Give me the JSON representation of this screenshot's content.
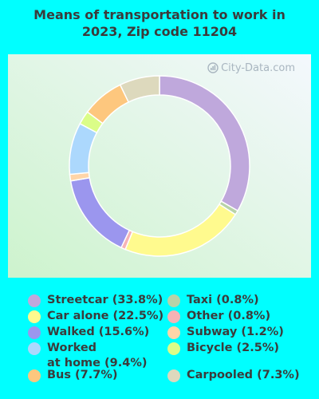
{
  "title_line1": "Means of transportation to work in",
  "title_line2": "2023, Zip code 11204",
  "watermark": "City-Data.com",
  "colors": {
    "background": "#00ffff",
    "panel_top": "#f4f8fd",
    "panel_bottom": "#cdf3cd"
  },
  "chart_data": {
    "type": "pie",
    "variant": "donut",
    "title": "Means of transportation to work in 2023, Zip code 11204",
    "unit": "%",
    "slices": [
      {
        "label": "Streetcar",
        "value": 33.8,
        "color": "#bfa8dc",
        "legend": "Streetcar (33.8%)"
      },
      {
        "label": "Taxi",
        "value": 0.8,
        "color": "#b8d3a8",
        "legend": "Taxi (0.8%)"
      },
      {
        "label": "Car alone",
        "value": 22.5,
        "color": "#fffa8e",
        "legend": "Car alone (22.5%)"
      },
      {
        "label": "Other",
        "value": 0.8,
        "color": "#f6b3b5",
        "legend": "Other (0.8%)"
      },
      {
        "label": "Walked",
        "value": 15.6,
        "color": "#9b96ee",
        "legend": "Walked (15.6%)"
      },
      {
        "label": "Subway",
        "value": 1.2,
        "color": "#ffd5a8",
        "legend": "Subway (1.2%)"
      },
      {
        "label": "Worked at home",
        "value": 9.4,
        "color": "#acd8fd",
        "legend": "Worked\nat home (9.4%)"
      },
      {
        "label": "Bicycle",
        "value": 2.5,
        "color": "#dbfd88",
        "legend": "Bicycle (2.5%)"
      },
      {
        "label": "Bus",
        "value": 7.7,
        "color": "#fdc77e",
        "legend": "Bus (7.7%)"
      },
      {
        "label": "Carpooled",
        "value": 7.3,
        "color": "#ddd9bd",
        "legend": "Carpooled (7.3%)"
      }
    ]
  }
}
